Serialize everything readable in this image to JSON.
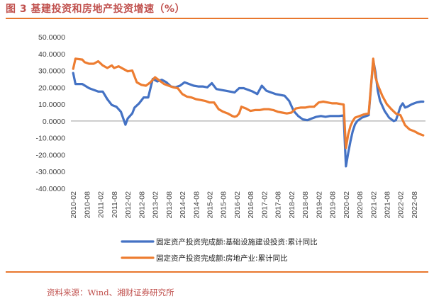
{
  "title": "图 3 基建投资和房地产投资增速（%）",
  "source": "资料来源：Wind、湘财证券研究所",
  "colors": {
    "accent": "#e8772e",
    "title": "#c0504d",
    "series_blue": "#4472c4",
    "series_orange": "#ed7d31"
  },
  "chart_data": {
    "type": "line",
    "title": "",
    "xlabel": "",
    "ylabel": "",
    "ylim": [
      -40,
      50
    ],
    "yticks": [
      "50.0000",
      "40.0000",
      "30.0000",
      "20.0000",
      "10.0000",
      "0.0000",
      "-10.0000",
      "-20.0000",
      "-30.0000",
      "-40.0000"
    ],
    "xticks": [
      "2010-02",
      "2010-08",
      "2011-02",
      "2011-08",
      "2012-02",
      "2012-08",
      "2013-02",
      "2013-08",
      "2014-02",
      "2014-08",
      "2015-02",
      "2015-08",
      "2016-02",
      "2016-08",
      "2017-02",
      "2017-08",
      "2018-02",
      "2018-08",
      "2019-02",
      "2019-08",
      "2020-02",
      "2020-08",
      "2021-02",
      "2021-08",
      "2022-02",
      "2022-08"
    ],
    "legend_position": "bottom",
    "series": [
      {
        "name": "固定资产投资完成额:基础设施建设投资:累计同比",
        "color": "#4472c4",
        "points": [
          [
            "2010-02",
            28.5
          ],
          [
            "2010-03",
            22
          ],
          [
            "2010-06",
            22
          ],
          [
            "2010-09",
            19.5
          ],
          [
            "2011-01",
            17.5
          ],
          [
            "2011-03",
            17.5
          ],
          [
            "2011-05",
            13
          ],
          [
            "2011-07",
            9.5
          ],
          [
            "2011-09",
            8.5
          ],
          [
            "2011-11",
            5.5
          ],
          [
            "2012-01",
            -2.2
          ],
          [
            "2012-02",
            1.5
          ],
          [
            "2012-04",
            4.5
          ],
          [
            "2012-05",
            8
          ],
          [
            "2012-07",
            10.5
          ],
          [
            "2012-09",
            14
          ],
          [
            "2012-11",
            14
          ],
          [
            "2013-01",
            25
          ],
          [
            "2013-03",
            23.5
          ],
          [
            "2013-05",
            24.5
          ],
          [
            "2013-07",
            23
          ],
          [
            "2013-09",
            20.5
          ],
          [
            "2013-11",
            20
          ],
          [
            "2014-01",
            21
          ],
          [
            "2014-03",
            23
          ],
          [
            "2014-05",
            22
          ],
          [
            "2014-07",
            21
          ],
          [
            "2014-09",
            20.5
          ],
          [
            "2014-11",
            20.5
          ],
          [
            "2015-01",
            20
          ],
          [
            "2015-03",
            22.5
          ],
          [
            "2015-05",
            19
          ],
          [
            "2015-07",
            18.5
          ],
          [
            "2015-09",
            18
          ],
          [
            "2015-11",
            17.5
          ],
          [
            "2016-01",
            17
          ],
          [
            "2016-03",
            19.5
          ],
          [
            "2016-05",
            19.5
          ],
          [
            "2016-07",
            18.5
          ],
          [
            "2016-09",
            17.5
          ],
          [
            "2016-11",
            16
          ],
          [
            "2017-01",
            21
          ],
          [
            "2017-03",
            18
          ],
          [
            "2017-05",
            17
          ],
          [
            "2017-07",
            16
          ],
          [
            "2017-09",
            15.5
          ],
          [
            "2017-11",
            15
          ],
          [
            "2018-01",
            12
          ],
          [
            "2018-03",
            6
          ],
          [
            "2018-05",
            3
          ],
          [
            "2018-07",
            1
          ],
          [
            "2018-09",
            0.5
          ],
          [
            "2018-11",
            1.5
          ],
          [
            "2019-01",
            2.5
          ],
          [
            "2019-03",
            3
          ],
          [
            "2019-05",
            2.5
          ],
          [
            "2019-07",
            3
          ],
          [
            "2019-09",
            3
          ],
          [
            "2019-11",
            3
          ],
          [
            "2020-01",
            3.3
          ],
          [
            "2020-02",
            -26.9
          ],
          [
            "2020-03",
            -19
          ],
          [
            "2020-04",
            -12
          ],
          [
            "2020-05",
            -6
          ],
          [
            "2020-06",
            -2
          ],
          [
            "2020-07",
            0
          ],
          [
            "2020-09",
            2
          ],
          [
            "2020-11",
            3
          ],
          [
            "2020-12",
            3.5
          ],
          [
            "2021-02",
            36
          ],
          [
            "2021-03",
            29
          ],
          [
            "2021-04",
            18
          ],
          [
            "2021-05",
            12
          ],
          [
            "2021-07",
            6
          ],
          [
            "2021-09",
            2
          ],
          [
            "2021-11",
            0
          ],
          [
            "2021-12",
            0.5
          ],
          [
            "2022-02",
            8.5
          ],
          [
            "2022-03",
            10.5
          ],
          [
            "2022-04",
            8
          ],
          [
            "2022-05",
            8.5
          ],
          [
            "2022-07",
            10
          ],
          [
            "2022-09",
            11
          ],
          [
            "2022-11",
            11.5
          ],
          [
            "2022-12",
            11.5
          ]
        ]
      },
      {
        "name": "固定资产投资完成额:房地产业:累计同比",
        "color": "#ed7d31",
        "points": [
          [
            "2010-02",
            31
          ],
          [
            "2010-03",
            37
          ],
          [
            "2010-06",
            36.5
          ],
          [
            "2010-07",
            35
          ],
          [
            "2010-09",
            34
          ],
          [
            "2010-11",
            34
          ],
          [
            "2011-01",
            35.5
          ],
          [
            "2011-03",
            33
          ],
          [
            "2011-05",
            31.5
          ],
          [
            "2011-07",
            33
          ],
          [
            "2011-08",
            31.5
          ],
          [
            "2011-10",
            32.5
          ],
          [
            "2011-12",
            31
          ],
          [
            "2012-02",
            29.5
          ],
          [
            "2012-04",
            30
          ],
          [
            "2012-06",
            23
          ],
          [
            "2012-08",
            21.5
          ],
          [
            "2012-10",
            21
          ],
          [
            "2012-12",
            23
          ],
          [
            "2013-02",
            26
          ],
          [
            "2013-04",
            24
          ],
          [
            "2013-06",
            22
          ],
          [
            "2013-08",
            21
          ],
          [
            "2013-10",
            20
          ],
          [
            "2013-12",
            19.5
          ],
          [
            "2014-02",
            16
          ],
          [
            "2014-04",
            14.5
          ],
          [
            "2014-06",
            14
          ],
          [
            "2014-08",
            13
          ],
          [
            "2014-10",
            12.5
          ],
          [
            "2014-12",
            12
          ],
          [
            "2015-02",
            11
          ],
          [
            "2015-04",
            11
          ],
          [
            "2015-06",
            7
          ],
          [
            "2015-08",
            5.5
          ],
          [
            "2015-10",
            4.5
          ],
          [
            "2015-12",
            3
          ],
          [
            "2016-01",
            2.5
          ],
          [
            "2016-02",
            3
          ],
          [
            "2016-03",
            4.5
          ],
          [
            "2016-04",
            8.5
          ],
          [
            "2016-06",
            7.5
          ],
          [
            "2016-08",
            6
          ],
          [
            "2016-10",
            6.5
          ],
          [
            "2016-12",
            6.5
          ],
          [
            "2017-02",
            7
          ],
          [
            "2017-04",
            7
          ],
          [
            "2017-06",
            6.5
          ],
          [
            "2017-08",
            5.5
          ],
          [
            "2017-10",
            5
          ],
          [
            "2017-12",
            4.5
          ],
          [
            "2018-02",
            5
          ],
          [
            "2018-04",
            7.5
          ],
          [
            "2018-06",
            8
          ],
          [
            "2018-08",
            8
          ],
          [
            "2018-10",
            8.5
          ],
          [
            "2018-12",
            8.5
          ],
          [
            "2019-02",
            11
          ],
          [
            "2019-04",
            11.5
          ],
          [
            "2019-06",
            11
          ],
          [
            "2019-08",
            10.5
          ],
          [
            "2019-10",
            10.5
          ],
          [
            "2019-12",
            10
          ],
          [
            "2020-01",
            9.8
          ],
          [
            "2020-02",
            -16
          ],
          [
            "2020-03",
            -8
          ],
          [
            "2020-04",
            -3
          ],
          [
            "2020-05",
            0
          ],
          [
            "2020-06",
            2
          ],
          [
            "2020-08",
            3
          ],
          [
            "2020-10",
            4
          ],
          [
            "2020-12",
            4.5
          ],
          [
            "2021-02",
            37
          ],
          [
            "2021-03",
            26
          ],
          [
            "2021-04",
            21.5
          ],
          [
            "2021-06",
            15
          ],
          [
            "2021-08",
            10
          ],
          [
            "2021-10",
            7
          ],
          [
            "2021-12",
            4.4
          ],
          [
            "2022-02",
            3.5
          ],
          [
            "2022-03",
            0.5
          ],
          [
            "2022-04",
            -2.5
          ],
          [
            "2022-06",
            -5
          ],
          [
            "2022-08",
            -6
          ],
          [
            "2022-10",
            -7.5
          ],
          [
            "2022-12",
            -8.5
          ]
        ]
      }
    ]
  }
}
